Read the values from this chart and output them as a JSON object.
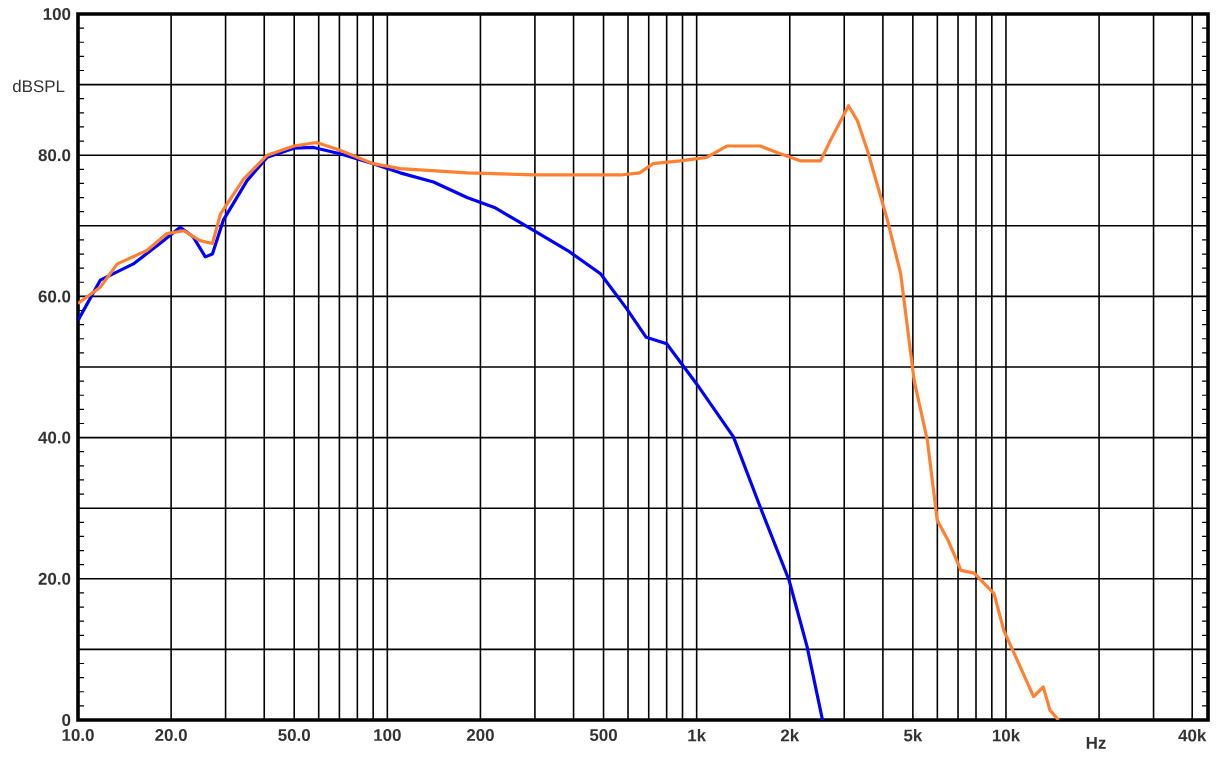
{
  "chart_data": {
    "type": "line",
    "xlabel": "Hz",
    "ylabel": "dBSPL",
    "log": "x",
    "grid": true,
    "marker": "none",
    "line_style": "solid",
    "xlim": [
      10,
      45000
    ],
    "ylim": [
      0,
      100
    ],
    "xticks": [
      {
        "value": 10,
        "label": "10.0"
      },
      {
        "value": 20,
        "label": "20.0"
      },
      {
        "value": 30,
        "label": null
      },
      {
        "value": 40,
        "label": null
      },
      {
        "value": 50,
        "label": "50.0"
      },
      {
        "value": 60,
        "label": null
      },
      {
        "value": 70,
        "label": null
      },
      {
        "value": 80,
        "label": null
      },
      {
        "value": 90,
        "label": null
      },
      100,
      200,
      {
        "value": 300,
        "label": null
      },
      {
        "value": 400,
        "label": null
      },
      500,
      {
        "value": 600,
        "label": null
      },
      {
        "value": 700,
        "label": null
      },
      {
        "value": 800,
        "label": null
      },
      {
        "value": 900,
        "label": null
      },
      {
        "value": 1000,
        "label": "1k"
      },
      {
        "value": 2000,
        "label": "2k"
      },
      {
        "value": 3000,
        "label": null
      },
      {
        "value": 4000,
        "label": null
      },
      {
        "value": 5000,
        "label": "5k"
      },
      {
        "value": 6000,
        "label": null
      },
      {
        "value": 7000,
        "label": null
      },
      {
        "value": 8000,
        "label": null
      },
      {
        "value": 9000,
        "label": null
      },
      {
        "value": 10000,
        "label": "10k"
      },
      {
        "value": 20000,
        "label": null
      },
      {
        "value": 30000,
        "label": null
      },
      {
        "value": 40000,
        "label": "40k"
      }
    ],
    "yticks": [
      0,
      {
        "value": 10,
        "label": null
      },
      {
        "value": 20,
        "label": "20.0"
      },
      {
        "value": 30,
        "label": null
      },
      {
        "value": 40,
        "label": "40.0"
      },
      {
        "value": 50,
        "label": null
      },
      {
        "value": 60,
        "label": "60.0"
      },
      {
        "value": 70,
        "label": null
      },
      {
        "value": 80,
        "label": "80.0"
      },
      {
        "value": 90,
        "label": null
      },
      100
    ],
    "series": [
      {
        "color": "#0000ff",
        "x": [
          10,
          11.8,
          15.1,
          18.4,
          21.4,
          23.6,
          25.8,
          27.2,
          29.5,
          35.2,
          40.9,
          49.9,
          57.7,
          70.4,
          90,
          110,
          141,
          181,
          222,
          298,
          383,
          489,
          593,
          687,
          800,
          1000,
          1315,
          1604,
          1990,
          2275,
          2552
        ],
        "values": [
          56.6,
          62.3,
          64.6,
          67.5,
          69.8,
          68.4,
          65.6,
          66,
          70.8,
          76.4,
          79.7,
          81,
          81.1,
          80.2,
          78.8,
          77.5,
          76.2,
          74,
          72.6,
          69.3,
          66.5,
          63.2,
          58.3,
          54.2,
          53.3,
          47.6,
          40.1,
          30.2,
          19.8,
          10.4,
          0
        ]
      },
      {
        "color": "#ff8030",
        "x": [
          10,
          11.8,
          13.4,
          16.7,
          19.4,
          22,
          24.8,
          27.2,
          28.9,
          34.3,
          40.9,
          49.9,
          59,
          70.4,
          90,
          110,
          181,
          298,
          566,
          655,
          723,
          883,
          1078,
          1251,
          1605,
          1864,
          2164,
          2514,
          2707,
          3097,
          3307,
          3564,
          4138,
          4567,
          5047,
          5571,
          5995,
          6489,
          7153,
          7896,
          9150,
          9840,
          11130,
          12280,
          13200,
          13870,
          14780
        ],
        "values": [
          59,
          61.3,
          64.6,
          66.5,
          68.9,
          69.3,
          67.9,
          67.5,
          71.7,
          76.6,
          80,
          81.3,
          81.8,
          80.7,
          78.8,
          78.1,
          77.5,
          77.2,
          77.2,
          77.5,
          78.8,
          79.2,
          79.7,
          81.3,
          81.3,
          80.2,
          79.2,
          79.2,
          82.1,
          87,
          84.9,
          80.7,
          70.8,
          63.2,
          48.1,
          39.6,
          28.3,
          25.5,
          21.2,
          20.8,
          17.9,
          12.7,
          7.5,
          3.3,
          4.7,
          1.4,
          0
        ]
      }
    ]
  }
}
